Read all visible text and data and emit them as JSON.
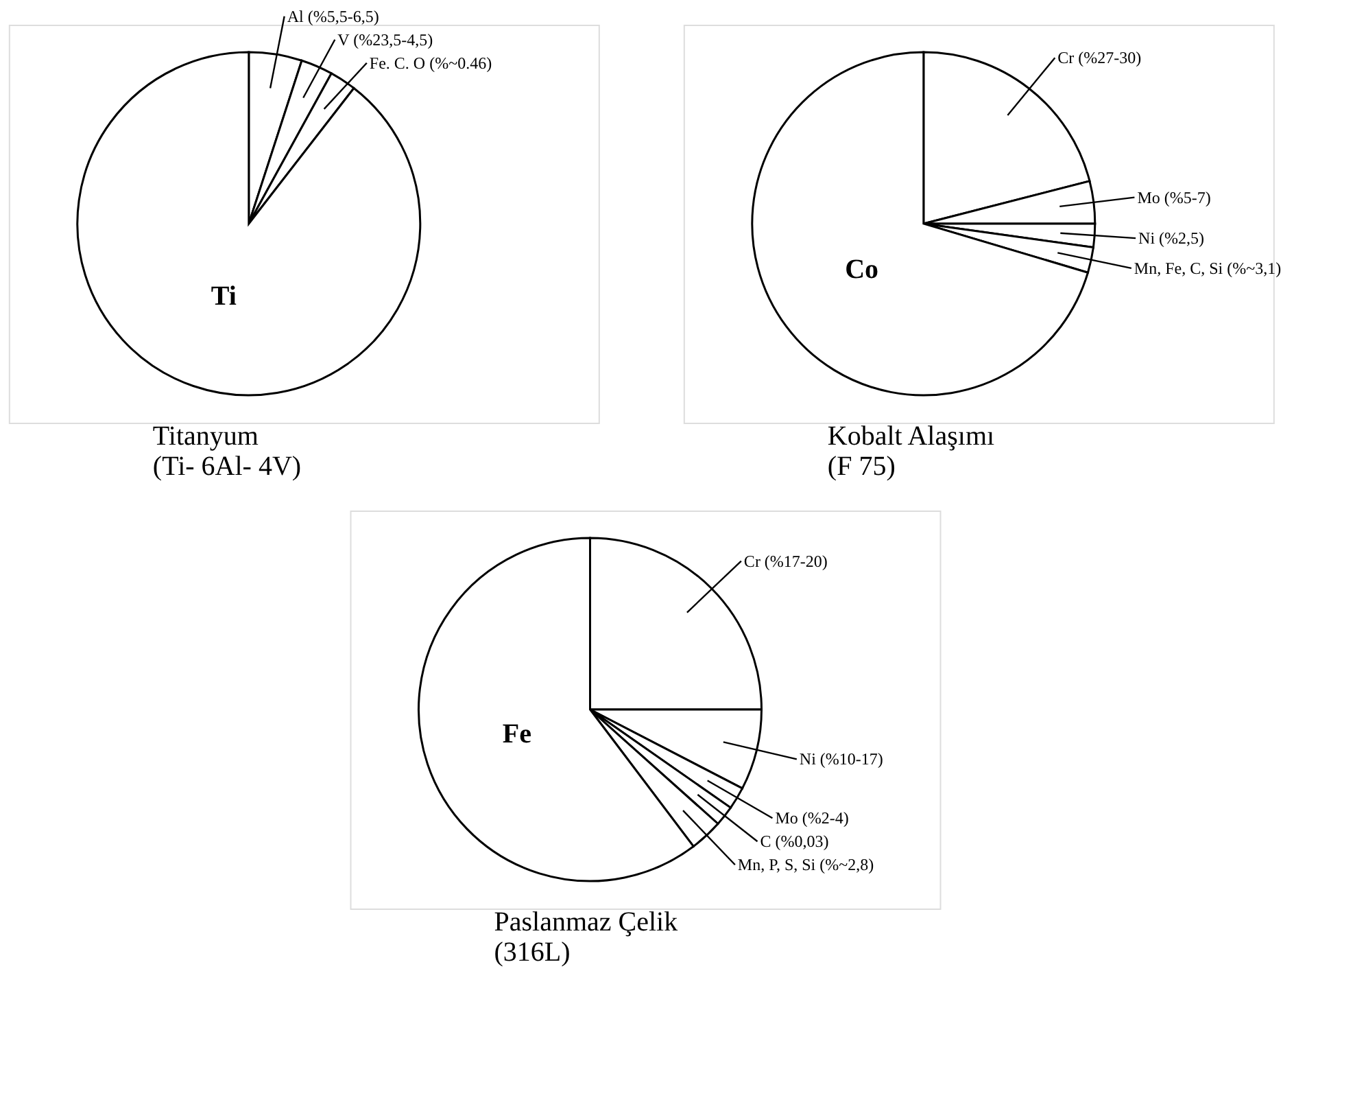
{
  "chart_data": [
    {
      "type": "pie",
      "title": "Titanyum\n(Ti- 6Al- 4V)",
      "categories": [
        "Al (%5,5-6,5)",
        "V (%23,5-4,5)",
        "Fe. C. O (%~0.46)",
        "Ti"
      ],
      "values": [
        5,
        3,
        2.5,
        89.5
      ],
      "colors": [
        "#ffffff",
        "#ffffff",
        "#ffffff",
        "#ffffff"
      ]
    },
    {
      "type": "pie",
      "title": "Kobalt Alaşımı\n(F 75)",
      "categories": [
        "Cr (%27-30)",
        "Mo (%5-7)",
        "Ni (%2,5)",
        "Mn, Fe, C, Si (%~3,1)",
        "Co"
      ],
      "values": [
        21,
        4,
        2.2,
        2.4,
        70.4
      ],
      "colors": [
        "#ffffff",
        "#ffffff",
        "#ffffff",
        "#ffffff",
        "#ffffff"
      ]
    },
    {
      "type": "pie",
      "title": "Paslanmaz Çelik\n(316L)",
      "categories": [
        "Cr (%17-20)",
        "Ni (%10-17)",
        "Mo (%2-4)",
        "C (%0,03)",
        "Mn, P, S, Si (%~2,8)",
        "Fe"
      ],
      "values": [
        25,
        7.6,
        2.1,
        1.9,
        3.1,
        60.3
      ],
      "colors": [
        "#ffffff",
        "#ffffff",
        "#ffffff",
        "#ffffff",
        "#ffffff",
        "#ffffff"
      ]
    }
  ]
}
